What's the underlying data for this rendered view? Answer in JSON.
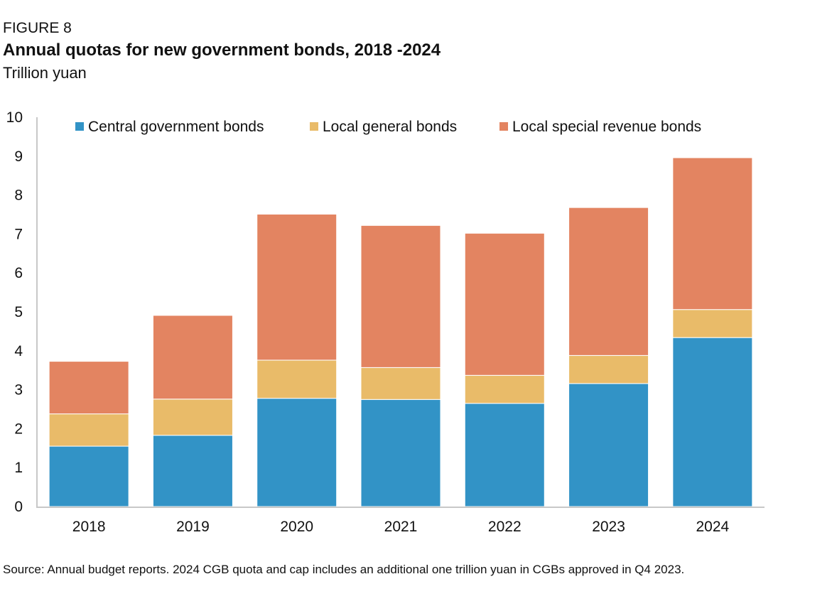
{
  "header": {
    "figure_label": "FIGURE 8",
    "title": "Annual quotas for new government bonds, 2018 -2024",
    "subtitle": "Trillion yuan"
  },
  "footer": {
    "source": "Source: Annual budget reports. 2024 CGB quota and cap includes an additional one trillion yuan in CGBs approved in Q4 2023."
  },
  "chart_data": {
    "type": "bar",
    "stacked": true,
    "title": "Annual quotas for new government bonds, 2018 -2024",
    "xlabel": "",
    "ylabel": "Trillion yuan",
    "ylim": [
      0,
      10
    ],
    "yticks": [
      0,
      1,
      2,
      3,
      4,
      5,
      6,
      7,
      8,
      9,
      10
    ],
    "grid": false,
    "legend_position": "top",
    "categories": [
      "2018",
      "2019",
      "2020",
      "2021",
      "2022",
      "2023",
      "2024"
    ],
    "series": [
      {
        "name": "Central government bonds",
        "color": "#3293c6",
        "values": [
          1.55,
          1.83,
          2.78,
          2.75,
          2.65,
          3.16,
          4.34
        ]
      },
      {
        "name": "Local general bonds",
        "color": "#e9bb69",
        "values": [
          0.83,
          0.93,
          0.98,
          0.82,
          0.72,
          0.72,
          0.72
        ]
      },
      {
        "name": "Local special revenue bonds",
        "color": "#e38461",
        "values": [
          1.35,
          2.15,
          3.75,
          3.65,
          3.65,
          3.8,
          3.9
        ]
      }
    ]
  }
}
